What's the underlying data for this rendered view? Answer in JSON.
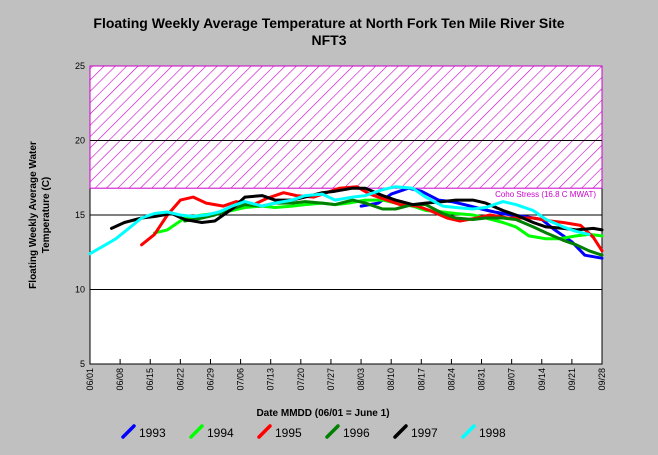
{
  "chart_data": {
    "type": "line",
    "title": "Floating Weekly Average Temperature at North Fork Ten Mile River Site",
    "subtitle": "NFT3",
    "xlabel": "Date MMDD (06/01 = June 1)",
    "ylabel_line1": "Floating Weekly Average Water",
    "ylabel_line2": "Temperature (C)",
    "ylim": [
      5,
      25
    ],
    "yticks": [
      "5",
      "10",
      "15",
      "20",
      "25"
    ],
    "x_ticks": [
      "06/01",
      "06/08",
      "06/15",
      "06/22",
      "06/29",
      "07/06",
      "07/13",
      "07/20",
      "07/27",
      "08/03",
      "08/10",
      "08/17",
      "08/24",
      "08/31",
      "09/07",
      "09/14",
      "09/21",
      "09/28"
    ],
    "grid": "horizontal",
    "stress_band": {
      "label": "Coho Stress (16.8 C MWAT)",
      "from": 16.8,
      "to": 25,
      "color": "#cc00cc"
    },
    "x_unit": "days after 06/01",
    "series": [
      {
        "name": "1993",
        "color": "#0000ff",
        "x": [
          63,
          67,
          70,
          74,
          77,
          81,
          84,
          87,
          91,
          94,
          98,
          101,
          105,
          108,
          112,
          115,
          119
        ],
        "y": [
          15.6,
          15.8,
          16.4,
          16.8,
          16.6,
          16.0,
          15.9,
          15.7,
          15.4,
          15.2,
          15.0,
          14.9,
          14.7,
          14.0,
          13.2,
          12.3,
          12.1
        ]
      },
      {
        "name": "1994",
        "color": "#00ff00",
        "x": [
          15,
          18,
          22,
          26,
          29,
          33,
          36,
          40,
          43,
          47,
          50,
          54,
          57,
          60,
          64,
          68,
          71,
          75,
          78,
          82,
          85,
          89,
          92,
          96,
          99,
          102,
          106,
          109,
          113,
          116,
          119
        ],
        "y": [
          13.8,
          14.0,
          14.8,
          15.0,
          15.1,
          15.3,
          15.5,
          15.6,
          15.5,
          15.6,
          15.7,
          15.8,
          15.7,
          15.8,
          16.0,
          16.0,
          15.8,
          15.6,
          15.3,
          15.2,
          15.1,
          15.0,
          14.8,
          14.5,
          14.2,
          13.6,
          13.4,
          13.4,
          13.6,
          13.7,
          13.6
        ]
      },
      {
        "name": "1995",
        "color": "#ff0000",
        "x": [
          12,
          15,
          18,
          21,
          24,
          27,
          31,
          34,
          38,
          41,
          45,
          48,
          52,
          55,
          58,
          62,
          65,
          69,
          72,
          76,
          79,
          83,
          86,
          90,
          93,
          97,
          100,
          103,
          107,
          110,
          114,
          117,
          119
        ],
        "y": [
          13.0,
          13.7,
          15.0,
          16.0,
          16.2,
          15.8,
          15.6,
          15.9,
          15.7,
          16.1,
          16.5,
          16.3,
          16.2,
          16.5,
          16.8,
          16.9,
          16.4,
          16.0,
          15.7,
          15.6,
          15.3,
          14.8,
          14.6,
          14.8,
          15.0,
          14.8,
          14.8,
          14.8,
          14.6,
          14.5,
          14.3,
          13.5,
          12.6
        ]
      },
      {
        "name": "1996",
        "color": "#008000",
        "x": [
          22,
          26,
          29,
          33,
          36,
          40,
          43,
          47,
          50,
          54,
          57,
          61,
          64,
          68,
          71,
          75,
          78,
          82,
          85,
          89,
          92,
          96,
          99,
          103,
          106,
          110,
          113,
          116,
          119
        ],
        "y": [
          14.6,
          14.8,
          15.0,
          15.4,
          15.7,
          15.6,
          15.8,
          15.8,
          15.9,
          15.8,
          15.7,
          16.0,
          15.8,
          15.4,
          15.4,
          15.7,
          15.7,
          15.1,
          14.8,
          14.7,
          14.8,
          14.8,
          14.7,
          14.2,
          13.8,
          13.3,
          13.0,
          12.6,
          12.3
        ]
      },
      {
        "name": "1997",
        "color": "#000000",
        "x": [
          5,
          8,
          12,
          15,
          19,
          22,
          26,
          29,
          33,
          36,
          40,
          43,
          47,
          50,
          54,
          57,
          61,
          64,
          68,
          71,
          75,
          78,
          82,
          85,
          89,
          92,
          96,
          99,
          103,
          106,
          110,
          113,
          117,
          119
        ],
        "y": [
          14.1,
          14.5,
          14.8,
          14.9,
          15.1,
          14.7,
          14.5,
          14.6,
          15.4,
          16.2,
          16.3,
          16.0,
          16.0,
          16.2,
          16.5,
          16.6,
          16.8,
          16.8,
          16.3,
          16.0,
          15.7,
          15.8,
          15.9,
          16.0,
          16.0,
          15.8,
          15.3,
          15.0,
          14.5,
          14.2,
          14.1,
          14.0,
          14.1,
          14.0
        ]
      },
      {
        "name": "1998",
        "color": "#00ffff",
        "x": [
          0,
          3,
          6,
          9,
          12,
          15,
          18,
          21,
          24,
          27,
          30,
          33,
          36,
          40,
          43,
          47,
          50,
          54,
          57,
          61,
          64,
          68,
          71,
          75,
          78,
          82,
          85,
          89,
          92,
          96,
          99,
          103,
          106,
          110,
          113,
          116
        ],
        "y": [
          12.4,
          12.9,
          13.4,
          14.1,
          14.8,
          15.1,
          15.2,
          15.0,
          14.9,
          15.0,
          15.2,
          15.6,
          15.9,
          15.6,
          15.8,
          16.0,
          16.3,
          16.4,
          16.0,
          16.2,
          16.3,
          16.7,
          16.9,
          16.8,
          16.2,
          15.6,
          15.5,
          15.4,
          15.5,
          15.9,
          15.7,
          15.3,
          14.7,
          14.2,
          13.9,
          13.7
        ]
      }
    ]
  }
}
